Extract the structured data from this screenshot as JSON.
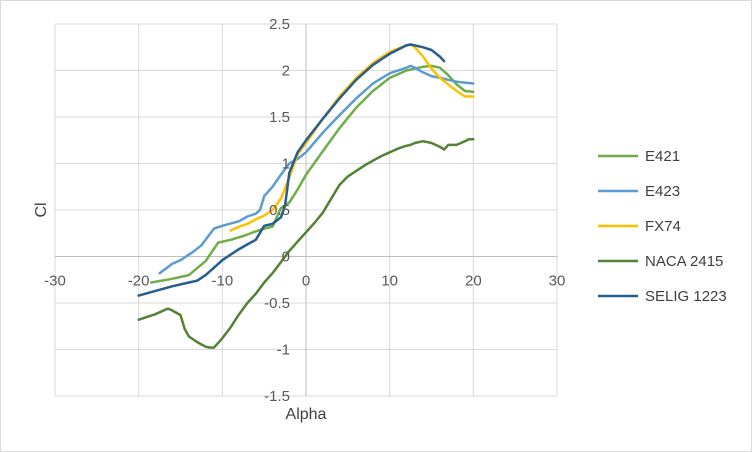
{
  "chart_data": {
    "type": "line",
    "title": "",
    "xlabel": "Alpha",
    "ylabel": "Cl",
    "xlim": [
      -30,
      30
    ],
    "ylim": [
      -1.5,
      2.5
    ],
    "xticks": [
      -30,
      -20,
      -10,
      0,
      10,
      20,
      30
    ],
    "yticks": [
      -1.5,
      -1,
      -0.5,
      0,
      0.5,
      1,
      1.5,
      2,
      2.5
    ],
    "grid": true,
    "legend_position": "right",
    "series": [
      {
        "name": "E421",
        "color": "#70ad47",
        "x": [
          -18.5,
          -16,
          -14,
          -12,
          -10.5,
          -9,
          -7.5,
          -6,
          -5,
          -4,
          -3,
          -2,
          -1,
          0,
          2,
          4,
          6,
          8,
          10,
          12,
          13,
          14,
          15,
          16,
          17,
          18,
          19,
          20
        ],
        "y": [
          -0.28,
          -0.24,
          -0.2,
          -0.05,
          0.15,
          0.18,
          0.22,
          0.27,
          0.3,
          0.32,
          0.52,
          0.58,
          0.72,
          0.88,
          1.13,
          1.38,
          1.6,
          1.78,
          1.92,
          2.0,
          2.02,
          2.04,
          2.05,
          2.03,
          1.95,
          1.85,
          1.78,
          1.77
        ]
      },
      {
        "name": "E423",
        "color": "#5b9bd5",
        "x": [
          -17.5,
          -16,
          -15,
          -13.5,
          -12.5,
          -11,
          -10,
          -8,
          -7,
          -6,
          -5.5,
          -5,
          -4,
          -3,
          -2,
          -1,
          0,
          2,
          4,
          6,
          8,
          10,
          12,
          12.5,
          13,
          14,
          15,
          16,
          17,
          18,
          19,
          20
        ],
        "y": [
          -0.18,
          -0.08,
          -0.04,
          0.05,
          0.12,
          0.3,
          0.33,
          0.38,
          0.43,
          0.46,
          0.5,
          0.65,
          0.75,
          0.88,
          1.0,
          1.05,
          1.12,
          1.33,
          1.52,
          1.7,
          1.86,
          1.97,
          2.03,
          2.05,
          2.03,
          1.98,
          1.94,
          1.92,
          1.9,
          1.88,
          1.87,
          1.86
        ]
      },
      {
        "name": "FX74",
        "color": "#ffc000",
        "x": [
          -9,
          -8,
          -7,
          -6,
          -5,
          -4,
          -3,
          -2,
          -1,
          0,
          2,
          4,
          6,
          8,
          10,
          12,
          12.5,
          13,
          14,
          15,
          16,
          17,
          18,
          19,
          20
        ],
        "y": [
          0.28,
          0.32,
          0.35,
          0.4,
          0.44,
          0.5,
          0.62,
          0.85,
          1.1,
          1.22,
          1.48,
          1.72,
          1.92,
          2.08,
          2.2,
          2.27,
          2.28,
          2.25,
          2.15,
          2.02,
          1.92,
          1.85,
          1.78,
          1.72,
          1.72
        ]
      },
      {
        "name": "NACA 2415",
        "color": "#548235",
        "x": [
          -20,
          -19,
          -18,
          -17,
          -16.5,
          -16,
          -15,
          -14.5,
          -14,
          -13,
          -12,
          -11.5,
          -11,
          -10,
          -9,
          -8,
          -7,
          -6,
          -5,
          -4,
          -3,
          -2,
          -1,
          0,
          1,
          2,
          3,
          4,
          5,
          6,
          7,
          8,
          9,
          10,
          11,
          12,
          12.5,
          13,
          14,
          15,
          16,
          16.5,
          17,
          18,
          19,
          19.5,
          20
        ],
        "y": [
          -0.68,
          -0.65,
          -0.62,
          -0.58,
          -0.56,
          -0.58,
          -0.63,
          -0.78,
          -0.86,
          -0.92,
          -0.97,
          -0.98,
          -0.98,
          -0.88,
          -0.76,
          -0.62,
          -0.5,
          -0.4,
          -0.28,
          -0.18,
          -0.06,
          0.06,
          0.16,
          0.26,
          0.36,
          0.47,
          0.62,
          0.77,
          0.86,
          0.92,
          0.98,
          1.03,
          1.08,
          1.12,
          1.16,
          1.19,
          1.2,
          1.22,
          1.24,
          1.22,
          1.18,
          1.15,
          1.2,
          1.2,
          1.24,
          1.26,
          1.26
        ]
      },
      {
        "name": "SELIG 1223",
        "color": "#255e91",
        "x": [
          -20,
          -18,
          -16,
          -14,
          -13,
          -12,
          -11,
          -10,
          -9,
          -8,
          -7,
          -6,
          -5,
          -4,
          -3,
          -2.5,
          -2,
          -1,
          0,
          2,
          4,
          6,
          8,
          10,
          12,
          12.5,
          13,
          14,
          15,
          16,
          16.5
        ],
        "y": [
          -0.42,
          -0.37,
          -0.32,
          -0.28,
          -0.26,
          -0.2,
          -0.12,
          -0.04,
          0.02,
          0.08,
          0.13,
          0.18,
          0.33,
          0.35,
          0.42,
          0.55,
          0.9,
          1.12,
          1.25,
          1.48,
          1.7,
          1.9,
          2.06,
          2.18,
          2.27,
          2.28,
          2.27,
          2.25,
          2.22,
          2.15,
          2.1
        ]
      }
    ]
  }
}
